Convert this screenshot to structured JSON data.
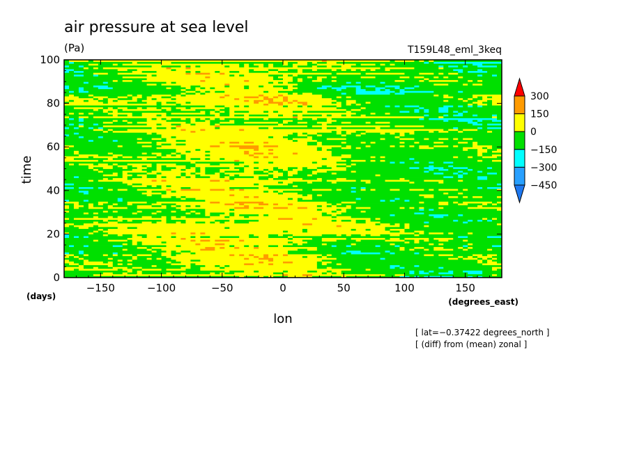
{
  "chart_data": {
    "type": "heatmap",
    "title": "air pressure at sea level",
    "units": "(Pa)",
    "experiment": "T159L48_eml_3keq",
    "xlabel": "lon",
    "xunits": "(degrees_east)",
    "ylabel": "time",
    "yunits": "(days)",
    "xlim": [
      -180,
      180
    ],
    "ylim": [
      0,
      100
    ],
    "xticks": [
      -150,
      -100,
      -50,
      0,
      50,
      100,
      150
    ],
    "yticks": [
      0,
      20,
      40,
      60,
      80,
      100
    ],
    "colorbar": {
      "levels": [
        -450,
        -300,
        -150,
        0,
        150,
        300
      ],
      "labels": [
        "300",
        "150",
        "0",
        "−150",
        "−300",
        "−450"
      ],
      "colors": [
        "#1e78f0",
        "#28a0ff",
        "#00ffff",
        "#00e000",
        "#ffff00",
        "#ff9b00",
        "#ff0000"
      ]
    },
    "annotations": [
      "[ lat=−0.37422 degrees_north ]",
      "[ (diff) from (mean) zonal ]"
    ]
  }
}
